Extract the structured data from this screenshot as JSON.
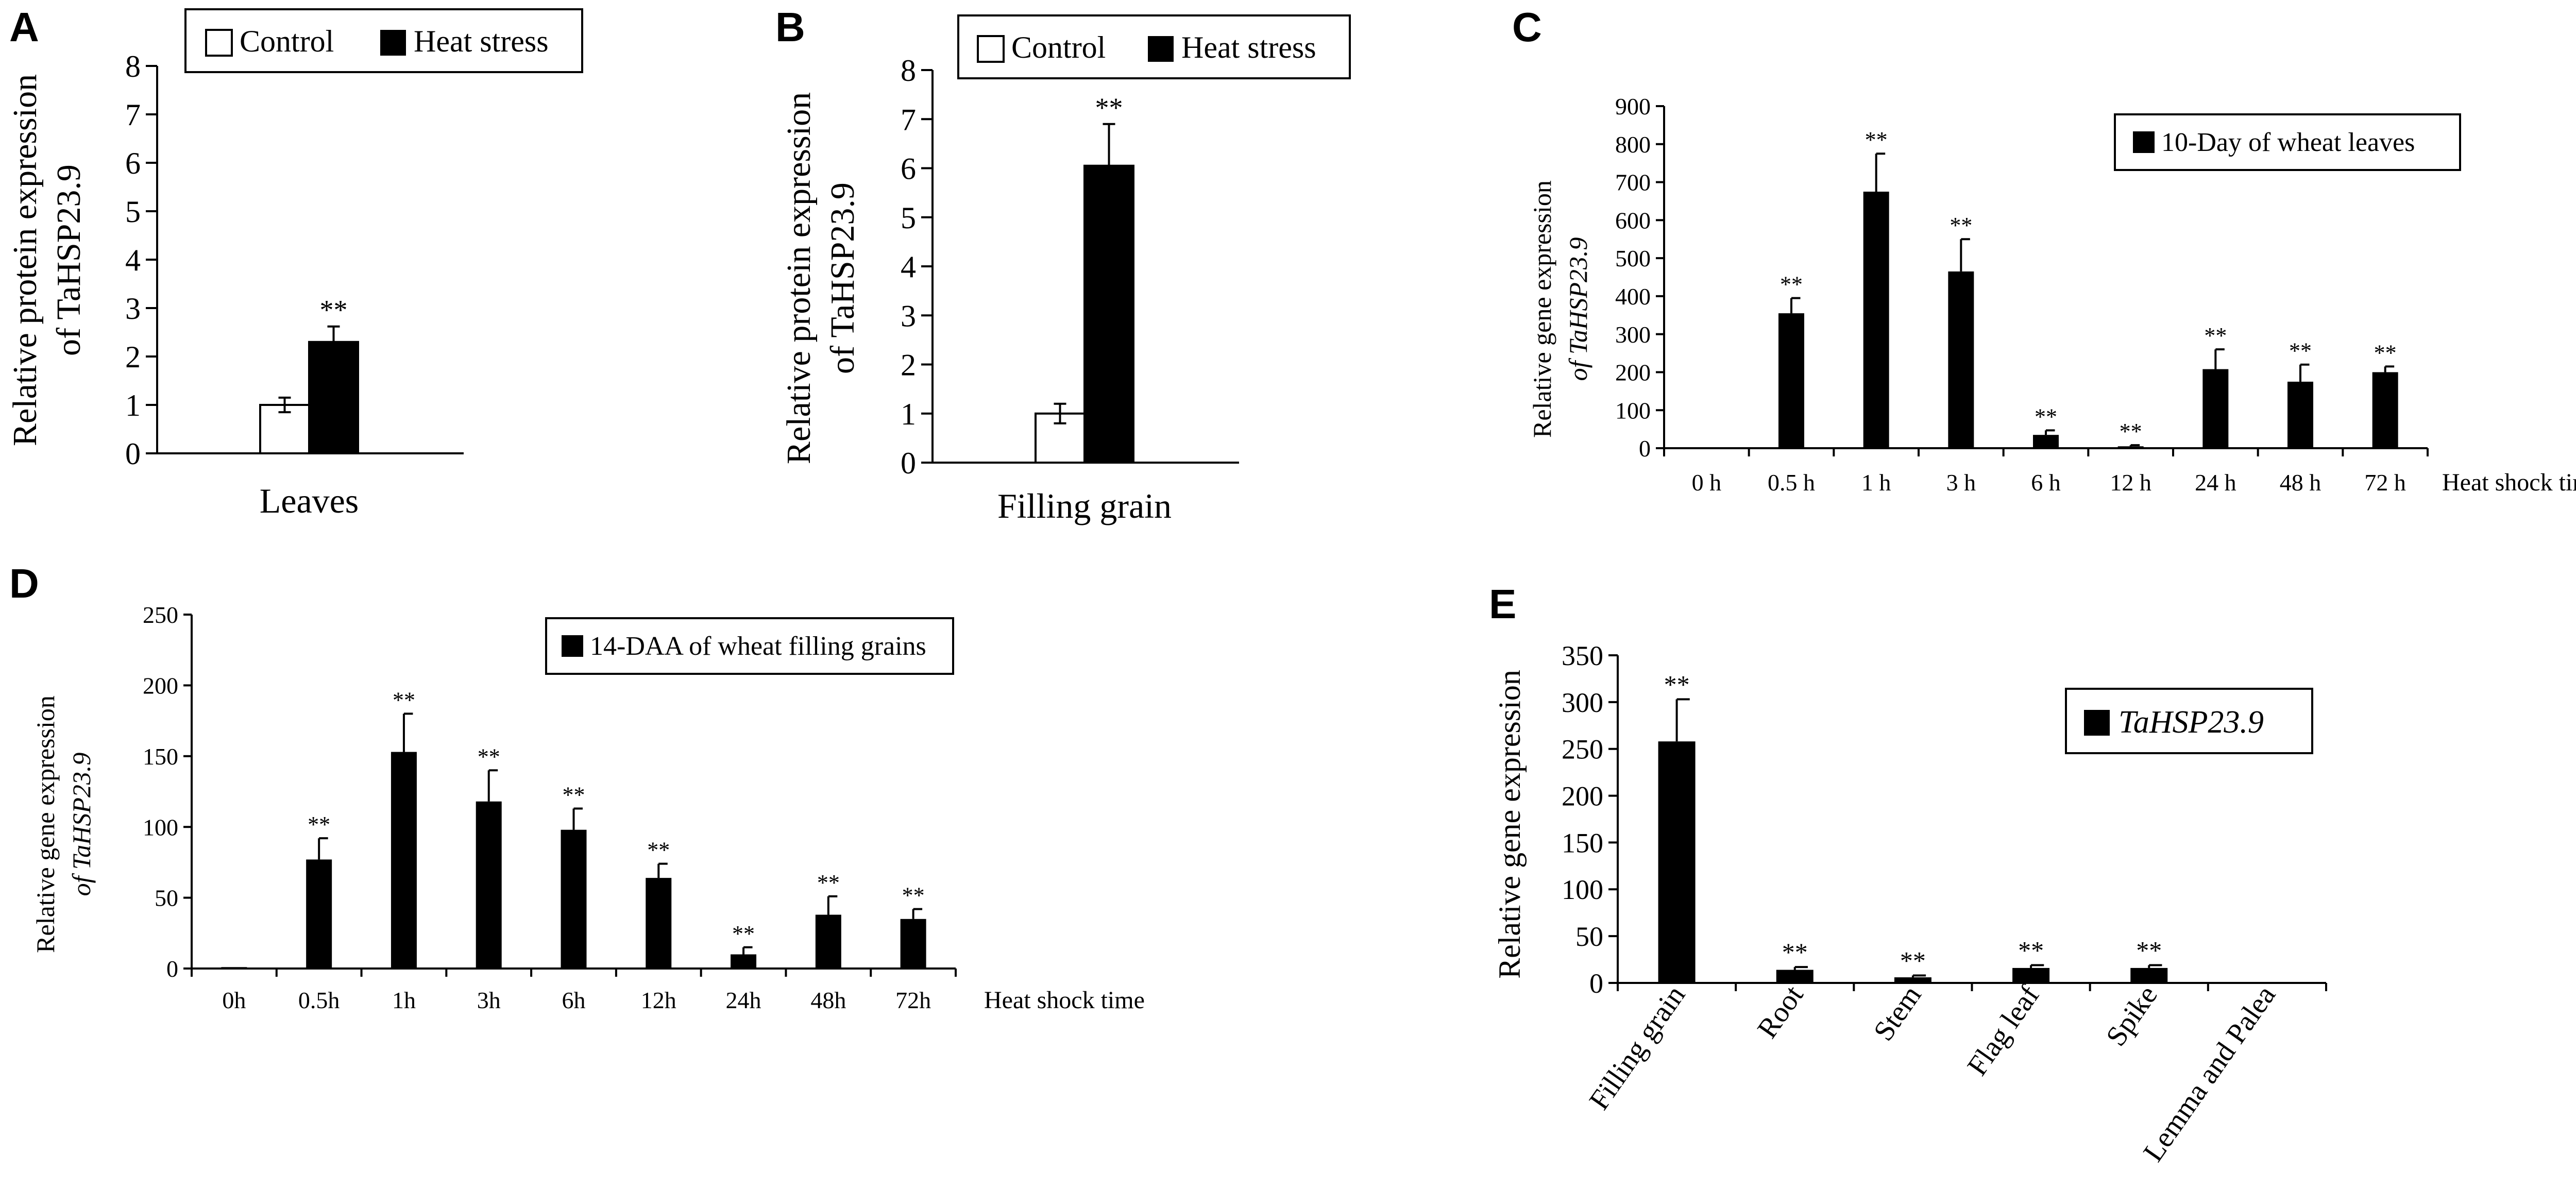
{
  "figure": {
    "panel_labels": [
      "A",
      "B",
      "C",
      "D",
      "E"
    ]
  },
  "chart_data": [
    {
      "id": "A",
      "type": "bar",
      "legend": [
        "Control",
        "Heat stress"
      ],
      "ylabel_lines": [
        "Relative protein expression",
        "of TaHSP23.9"
      ],
      "xlabel": "Leaves",
      "categories": [
        "Leaves"
      ],
      "series": [
        {
          "name": "Control",
          "fill": "#ffffff",
          "values": [
            1.0
          ],
          "errors": [
            0.15
          ],
          "sig": [
            ""
          ]
        },
        {
          "name": "Heat stress",
          "fill": "#000000",
          "values": [
            2.3
          ],
          "errors": [
            0.32
          ],
          "sig": [
            "**"
          ]
        }
      ],
      "ylim": [
        0,
        8
      ],
      "yticks": [
        "0",
        "1",
        "2",
        "3",
        "4",
        "5",
        "6",
        "7",
        "8"
      ]
    },
    {
      "id": "B",
      "type": "bar",
      "legend": [
        "Control",
        "Heat stress"
      ],
      "ylabel_lines": [
        "Relative protein expression",
        "of TaHSP23.9"
      ],
      "xlabel": "Filling grain",
      "categories": [
        "Filling grain"
      ],
      "series": [
        {
          "name": "Control",
          "fill": "#ffffff",
          "values": [
            1.0
          ],
          "errors": [
            0.2
          ],
          "sig": [
            ""
          ]
        },
        {
          "name": "Heat stress",
          "fill": "#000000",
          "values": [
            6.05
          ],
          "errors": [
            0.85
          ],
          "sig": [
            "**"
          ]
        }
      ],
      "ylim": [
        0,
        8
      ],
      "yticks": [
        "0",
        "1",
        "2",
        "3",
        "4",
        "5",
        "6",
        "7",
        "8"
      ]
    },
    {
      "id": "C",
      "type": "bar",
      "legend": [
        "10-Day of wheat leaves"
      ],
      "ylabel_lines": [
        "Relative gene expression",
        "of TaHSP23.9"
      ],
      "xlabel": "Heat shock time",
      "categories": [
        "0 h",
        "0.5 h",
        "1 h",
        "3 h",
        "6 h",
        "12 h",
        "24 h",
        "48 h",
        "72 h"
      ],
      "values": [
        1,
        355,
        675,
        465,
        35,
        5,
        208,
        175,
        200
      ],
      "errors": [
        0,
        40,
        100,
        85,
        12,
        3,
        52,
        45,
        15
      ],
      "sig": [
        "",
        "**",
        "**",
        "**",
        "**",
        "**",
        "**",
        "**",
        "**"
      ],
      "ylim": [
        0,
        900
      ],
      "yticks": [
        "0",
        "100",
        "200",
        "300",
        "400",
        "500",
        "600",
        "700",
        "800",
        "900"
      ]
    },
    {
      "id": "D",
      "type": "bar",
      "legend": [
        "14-DAA of wheat filling grains"
      ],
      "ylabel_lines": [
        "Relative gene expression",
        "of TaHSP23.9"
      ],
      "xlabel": "Heat shock time",
      "categories": [
        "0h",
        "0.5h",
        "1h",
        "3h",
        "6h",
        "12h",
        "24h",
        "48h",
        "72h"
      ],
      "values": [
        1,
        77,
        153,
        118,
        98,
        64,
        10,
        38,
        35
      ],
      "errors": [
        0,
        15,
        27,
        22,
        15,
        10,
        5,
        13,
        7
      ],
      "sig": [
        "",
        "**",
        "**",
        "**",
        "**",
        "**",
        "**",
        "**",
        "**"
      ],
      "ylim": [
        0,
        250
      ],
      "yticks": [
        "0",
        "50",
        "100",
        "150",
        "200",
        "250"
      ]
    },
    {
      "id": "E",
      "type": "bar",
      "legend": [
        "TaHSP23.9"
      ],
      "ylabel_lines": [
        "Relative gene expression"
      ],
      "xlabel": "",
      "categories": [
        "Filling grain",
        "Root",
        "Stem",
        "Flag leaf",
        "Spike",
        "Lemma and Palea"
      ],
      "values": [
        258,
        14,
        6,
        16,
        16,
        1
      ],
      "errors": [
        45,
        3,
        2,
        3,
        3,
        0
      ],
      "sig": [
        "**",
        "**",
        "**",
        "**",
        "**",
        ""
      ],
      "ylim": [
        0,
        350
      ],
      "yticks": [
        "0",
        "50",
        "100",
        "150",
        "200",
        "250",
        "300",
        "350"
      ]
    }
  ]
}
